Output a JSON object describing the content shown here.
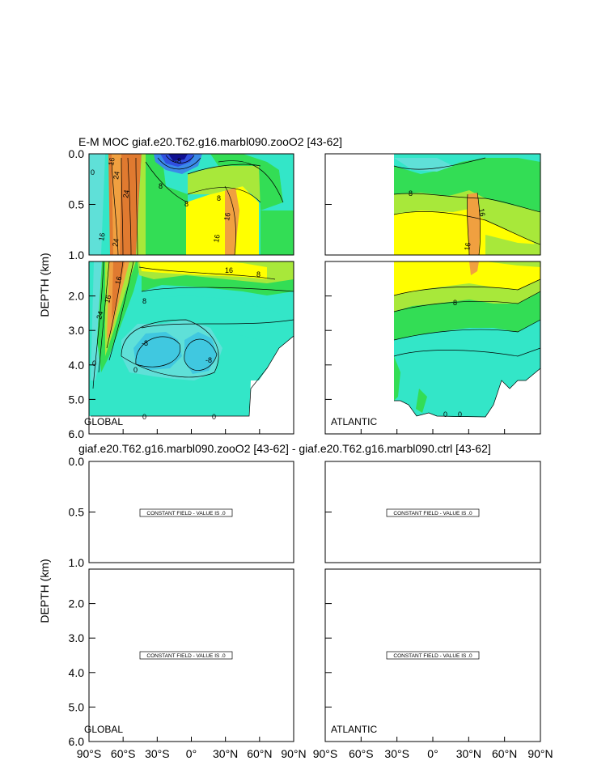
{
  "titles": {
    "top": "E-M MOC  giaf.e20.T62.g16.marbl090.zooO2 [43-62]",
    "bottom": "giaf.e20.T62.g16.marbl090.zooO2 [43-62] - giaf.e20.T62.g16.marbl090.ctrl [43-62]"
  },
  "ylabel": "DEPTH (km)",
  "upper_ticks": [
    "0.0",
    "0.5",
    "1.0"
  ],
  "lower_ticks": [
    "2.0",
    "3.0",
    "4.0",
    "5.0",
    "6.0"
  ],
  "x_ticks": [
    "90°S",
    "60°S",
    "30°S",
    "0°",
    "30°N",
    "60°N",
    "90°N"
  ],
  "basins": {
    "global": "GLOBAL",
    "atlantic": "ATLANTIC"
  },
  "constant_label": "CONSTANT FIELD - VALUE IS .0",
  "contour_labels": [
    "16",
    "24",
    "8",
    "0",
    "-8"
  ],
  "colors": {
    "cyan": "#33e6c8",
    "aqua": "#5fe0d8",
    "green": "#33dd55",
    "yellowgreen": "#a8e83a",
    "yellow": "#ffff00",
    "orange": "#f0a040",
    "deep_orange": "#e07a30",
    "blue": "#3050e0",
    "navy": "#101090"
  },
  "chart_data": [
    {
      "type": "heatmap",
      "panel": "top-left",
      "region": "GLOBAL",
      "title": "E-M MOC  giaf.e20.T62.g16.marbl090.zooO2 [43-62]",
      "xlabel": "",
      "ylabel": "DEPTH (km)",
      "xlim": [
        -90,
        90
      ],
      "ylim": [
        6.0,
        0.0
      ],
      "contour_labels": [
        "16",
        "24",
        "8",
        "0",
        "-8"
      ]
    },
    {
      "type": "heatmap",
      "panel": "top-right",
      "region": "ATLANTIC",
      "xlim": [
        -90,
        90
      ],
      "ylim": [
        6.0,
        0.0
      ],
      "contour_labels": [
        "16",
        "8",
        "0"
      ]
    },
    {
      "type": "heatmap",
      "panel": "bottom-left",
      "region": "GLOBAL",
      "title": "giaf.e20.T62.g16.marbl090.zooO2 [43-62] - giaf.e20.T62.g16.marbl090.ctrl [43-62]",
      "ylabel": "DEPTH (km)",
      "xlim": [
        -90,
        90
      ],
      "ylim": [
        6.0,
        0.0
      ],
      "constant_value": 0.0,
      "annotation": "CONSTANT FIELD - VALUE IS .0"
    },
    {
      "type": "heatmap",
      "panel": "bottom-right",
      "region": "ATLANTIC",
      "xlim": [
        -90,
        90
      ],
      "ylim": [
        6.0,
        0.0
      ],
      "constant_value": 0.0,
      "annotation": "CONSTANT FIELD - VALUE IS .0"
    }
  ]
}
